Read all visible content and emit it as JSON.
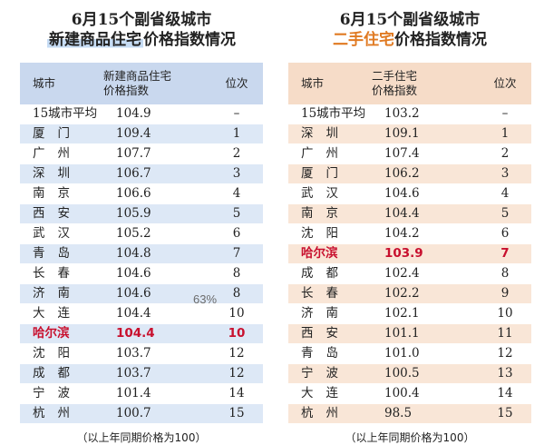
{
  "left": {
    "title_line1": "6月15个副省级城市",
    "title_highlight": "新建商品住宅",
    "title_rest": "价格指数情况",
    "col_city": "城市",
    "col_index_line1": "新建商品住宅",
    "col_index_line2": "价格指数",
    "col_rank": "位次",
    "rows": [
      {
        "city": "15城市平均",
        "value": "104.9",
        "rank": "–"
      },
      {
        "city": "厦门",
        "value": "109.4",
        "rank": "1"
      },
      {
        "city": "广州",
        "value": "107.7",
        "rank": "2"
      },
      {
        "city": "深圳",
        "value": "106.7",
        "rank": "3"
      },
      {
        "city": "南京",
        "value": "106.6",
        "rank": "4"
      },
      {
        "city": "西安",
        "value": "105.9",
        "rank": "5"
      },
      {
        "city": "武汉",
        "value": "105.2",
        "rank": "6"
      },
      {
        "city": "青岛",
        "value": "104.8",
        "rank": "7"
      },
      {
        "city": "长春",
        "value": "104.6",
        "rank": "8"
      },
      {
        "city": "济南",
        "value": "104.6",
        "rank": "8"
      },
      {
        "city": "大连",
        "value": "104.4",
        "rank": "10"
      },
      {
        "city": "哈尔滨",
        "value": "104.4",
        "rank": "10"
      },
      {
        "city": "沈阳",
        "value": "103.7",
        "rank": "12"
      },
      {
        "city": "成都",
        "value": "103.7",
        "rank": "12"
      },
      {
        "city": "宁波",
        "value": "101.4",
        "rank": "14"
      },
      {
        "city": "杭州",
        "value": "100.7",
        "rank": "15"
      }
    ],
    "highlight_row": 11,
    "note": "（以上年同期价格为100）"
  },
  "right": {
    "title_line1": "6月15个副省级城市",
    "title_highlight": "二手住宅",
    "title_rest": "价格指数情况",
    "col_city": "城市",
    "col_index_line1": "二手住宅",
    "col_index_line2": "价格指数",
    "col_rank": "位次",
    "rows": [
      {
        "city": "15城市平均",
        "value": "103.2",
        "rank": "–"
      },
      {
        "city": "深圳",
        "value": "109.1",
        "rank": "1"
      },
      {
        "city": "广州",
        "value": "107.4",
        "rank": "2"
      },
      {
        "city": "厦门",
        "value": "106.2",
        "rank": "3"
      },
      {
        "city": "武汉",
        "value": "104.6",
        "rank": "4"
      },
      {
        "city": "南京",
        "value": "104.4",
        "rank": "5"
      },
      {
        "city": "沈阳",
        "value": "104.2",
        "rank": "6"
      },
      {
        "city": "哈尔滨",
        "value": "103.9",
        "rank": "7"
      },
      {
        "city": "成都",
        "value": "102.4",
        "rank": "8"
      },
      {
        "city": "长春",
        "value": "102.2",
        "rank": "9"
      },
      {
        "city": "济南",
        "value": "102.1",
        "rank": "10"
      },
      {
        "city": "西安",
        "value": "101.1",
        "rank": "11"
      },
      {
        "city": "青岛",
        "value": "101.0",
        "rank": "12"
      },
      {
        "city": "宁波",
        "value": "100.5",
        "rank": "13"
      },
      {
        "city": "大连",
        "value": "100.4",
        "rank": "14"
      },
      {
        "city": "杭州",
        "value": "98.5",
        "rank": "15"
      }
    ],
    "highlight_row": 7,
    "note": "（以上年同期价格为100）"
  },
  "overlay_text": "63%",
  "colors": {
    "left_header_bg": "#c9d8ee",
    "left_stripe": "#dde8f6",
    "right_header_bg": "#f6dcc8",
    "right_stripe": "#f9e6d7",
    "highlight_text": "#c8102e",
    "right_title_highlight": "#e07a22"
  }
}
